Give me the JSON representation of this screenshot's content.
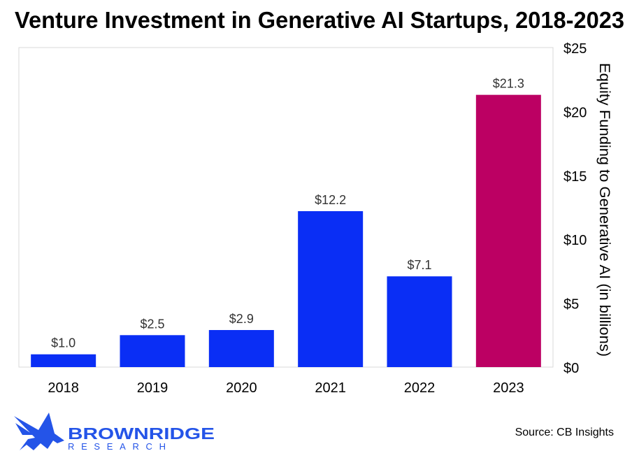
{
  "chart_data": {
    "type": "bar",
    "title": "Venture Investment in Generative AI Startups, 2018-2023",
    "categories": [
      "2018",
      "2019",
      "2020",
      "2021",
      "2022",
      "2023"
    ],
    "values": [
      1.0,
      2.5,
      2.9,
      12.2,
      7.1,
      21.3
    ],
    "data_labels": [
      "$1.0",
      "$2.5",
      "$2.9",
      "$12.2",
      "$7.1",
      "$21.3"
    ],
    "bar_colors": [
      "#0A2EF5",
      "#0A2EF5",
      "#0A2EF5",
      "#0A2EF5",
      "#0A2EF5",
      "#BC0063"
    ],
    "xlabel": "",
    "ylabel": "Equity Funding to Generative AI (in billions)",
    "ylim": [
      0,
      25
    ],
    "yticks": [
      0,
      5,
      10,
      15,
      20,
      25
    ],
    "ytick_labels": [
      "$0",
      "$5",
      "$10",
      "$15",
      "$20",
      "$25"
    ],
    "yaxis_position": "right",
    "grid": false,
    "legend": "none"
  },
  "source": "Source: CB Insights",
  "logo": {
    "name": "BROWNRIDGE",
    "sub": "RESEARCH",
    "color": "#2454E8"
  }
}
